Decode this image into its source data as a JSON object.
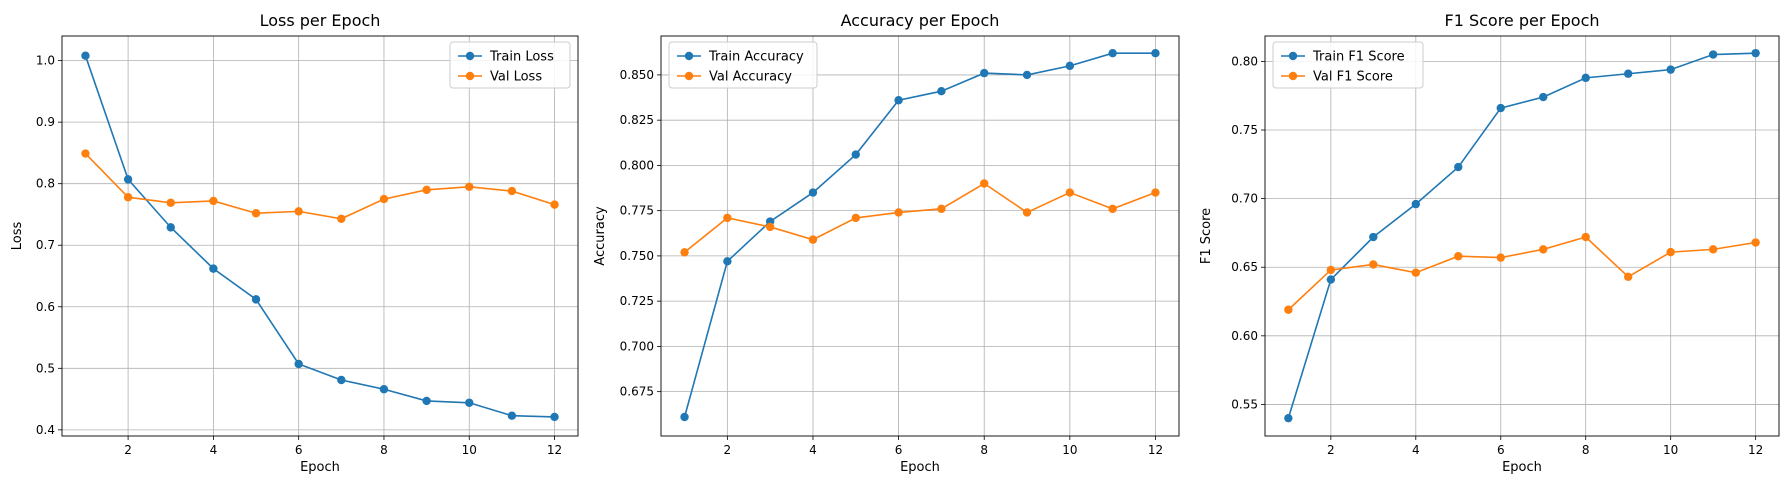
{
  "chart_data": [
    {
      "type": "line",
      "title": "Loss per Epoch",
      "xlabel": "Epoch",
      "ylabel": "Loss",
      "x": [
        1,
        2,
        3,
        4,
        5,
        6,
        7,
        8,
        9,
        10,
        11,
        12
      ],
      "xlim": [
        0.45,
        12.55
      ],
      "ylim": [
        0.39,
        1.04
      ],
      "xticks": [
        2,
        4,
        6,
        8,
        10,
        12
      ],
      "xtick_labels": [
        "2",
        "4",
        "6",
        "8",
        "10",
        "12"
      ],
      "yticks": [
        0.4,
        0.5,
        0.6,
        0.7,
        0.8,
        0.9,
        1.0
      ],
      "ytick_labels": [
        "0.4",
        "0.5",
        "0.6",
        "0.7",
        "0.8",
        "0.9",
        "1.0"
      ],
      "grid": true,
      "legend_position": "top-right",
      "series": [
        {
          "name": "Train Loss",
          "color": "#1f77b4",
          "values": [
            1.008,
            0.807,
            0.729,
            0.662,
            0.612,
            0.507,
            0.481,
            0.466,
            0.447,
            0.444,
            0.423,
            0.421
          ]
        },
        {
          "name": "Val Loss",
          "color": "#ff7f0e",
          "values": [
            0.849,
            0.778,
            0.769,
            0.772,
            0.752,
            0.755,
            0.743,
            0.775,
            0.79,
            0.795,
            0.788,
            0.766
          ]
        }
      ]
    },
    {
      "type": "line",
      "title": "Accuracy per Epoch",
      "xlabel": "Epoch",
      "ylabel": "Accuracy",
      "x": [
        1,
        2,
        3,
        4,
        5,
        6,
        7,
        8,
        9,
        10,
        11,
        12
      ],
      "xlim": [
        0.45,
        12.55
      ],
      "ylim": [
        0.6505,
        0.8715
      ],
      "xticks": [
        2,
        4,
        6,
        8,
        10,
        12
      ],
      "xtick_labels": [
        "2",
        "4",
        "6",
        "8",
        "10",
        "12"
      ],
      "yticks": [
        0.675,
        0.7,
        0.725,
        0.75,
        0.775,
        0.8,
        0.825,
        0.85
      ],
      "ytick_labels": [
        "0.675",
        "0.700",
        "0.725",
        "0.750",
        "0.775",
        "0.800",
        "0.825",
        "0.850"
      ],
      "grid": true,
      "legend_position": "top-left",
      "series": [
        {
          "name": "Train Accuracy",
          "color": "#1f77b4",
          "values": [
            0.661,
            0.747,
            0.769,
            0.785,
            0.806,
            0.836,
            0.841,
            0.851,
            0.85,
            0.855,
            0.862,
            0.862
          ]
        },
        {
          "name": "Val Accuracy",
          "color": "#ff7f0e",
          "values": [
            0.752,
            0.771,
            0.766,
            0.759,
            0.771,
            0.774,
            0.776,
            0.79,
            0.774,
            0.785,
            0.776,
            0.785
          ]
        }
      ]
    },
    {
      "type": "line",
      "title": "F1 Score per Epoch",
      "xlabel": "Epoch",
      "ylabel": "F1 Score",
      "x": [
        1,
        2,
        3,
        4,
        5,
        6,
        7,
        8,
        9,
        10,
        11,
        12
      ],
      "xlim": [
        0.45,
        12.55
      ],
      "ylim": [
        0.527,
        0.8185
      ],
      "xticks": [
        2,
        4,
        6,
        8,
        10,
        12
      ],
      "xtick_labels": [
        "2",
        "4",
        "6",
        "8",
        "10",
        "12"
      ],
      "yticks": [
        0.55,
        0.6,
        0.65,
        0.7,
        0.75,
        0.8
      ],
      "ytick_labels": [
        "0.55",
        "0.60",
        "0.65",
        "0.70",
        "0.75",
        "0.80"
      ],
      "grid": true,
      "legend_position": "top-left",
      "series": [
        {
          "name": "Train F1 Score",
          "color": "#1f77b4",
          "values": [
            0.54,
            0.641,
            0.672,
            0.696,
            0.723,
            0.766,
            0.774,
            0.788,
            0.791,
            0.794,
            0.805,
            0.806
          ]
        },
        {
          "name": "Val F1 Score",
          "color": "#ff7f0e",
          "values": [
            0.619,
            0.648,
            0.652,
            0.646,
            0.658,
            0.657,
            0.663,
            0.672,
            0.643,
            0.661,
            0.663,
            0.668
          ]
        }
      ]
    }
  ]
}
